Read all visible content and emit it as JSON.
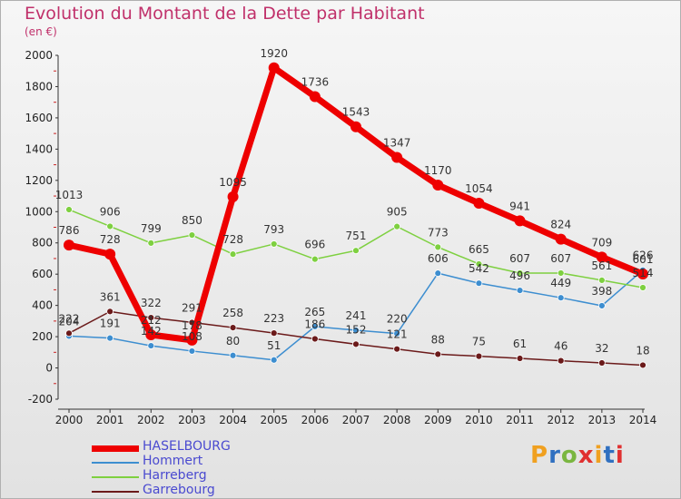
{
  "title": "Evolution du Montant de la Dette par Habitant",
  "subtitle": "(en €)",
  "brand": {
    "text": "Proxiti",
    "colors": [
      "#f0a020",
      "#3070c0",
      "#7ab640",
      "#e03030",
      "#f0a020",
      "#3070c0",
      "#e03030"
    ]
  },
  "chart_data": {
    "type": "line",
    "title": "Evolution du Montant de la Dette par Habitant",
    "ylabel": "(en €)",
    "xlabel": "",
    "x": [
      "2000",
      "2001",
      "2002",
      "2003",
      "2004",
      "2005",
      "2006",
      "2007",
      "2008",
      "2009",
      "2010",
      "2011",
      "2012",
      "2013",
      "2014"
    ],
    "ylim": [
      -200,
      2000
    ],
    "yticks": [
      -200,
      0,
      200,
      400,
      600,
      800,
      1000,
      1200,
      1400,
      1600,
      1800,
      2000
    ],
    "grid": false,
    "legend_position": "bottom-left",
    "series": [
      {
        "name": "HASELBOURG",
        "color": "#ee0000",
        "width": 7,
        "marker": 6,
        "values": [
          786,
          728,
          212,
          178,
          1095,
          1920,
          1736,
          1543,
          1347,
          1170,
          1054,
          941,
          824,
          709,
          601
        ],
        "labels": [
          "786",
          "728",
          "212",
          "178",
          "1095",
          "1920",
          "1736",
          "1543",
          "1347",
          "1170",
          "1054",
          "941",
          "824",
          "709",
          "601"
        ]
      },
      {
        "name": "Hommert",
        "color": "#3d8ed0",
        "width": 1.5,
        "marker": 3.5,
        "values": [
          204,
          191,
          142,
          108,
          80,
          51,
          265,
          241,
          220,
          606,
          542,
          496,
          449,
          398,
          626
        ],
        "labels": [
          "204",
          "191",
          "142",
          "108",
          "80",
          "51",
          "265",
          "241",
          "220",
          "606",
          "542",
          "496",
          "449",
          "398",
          "626"
        ]
      },
      {
        "name": "Harreberg",
        "color": "#7ed040",
        "width": 1.5,
        "marker": 3.5,
        "values": [
          1013,
          906,
          799,
          850,
          728,
          793,
          696,
          751,
          905,
          773,
          665,
          607,
          607,
          561,
          514
        ],
        "labels": [
          "1013",
          "906",
          "799",
          "850",
          "728",
          "793",
          "696",
          "751",
          "905",
          "773",
          "665",
          "607",
          "607",
          "561",
          "514"
        ]
      },
      {
        "name": "Garrebourg",
        "color": "#6b1a1a",
        "width": 1.5,
        "marker": 3.5,
        "values": [
          222,
          361,
          322,
          291,
          258,
          223,
          186,
          152,
          121,
          88,
          75,
          61,
          46,
          32,
          18
        ],
        "labels": [
          "222",
          "361",
          "322",
          "291",
          "258",
          "223",
          "186",
          "152",
          "121",
          "88",
          "75",
          "61",
          "46",
          "32",
          "18"
        ]
      }
    ]
  }
}
